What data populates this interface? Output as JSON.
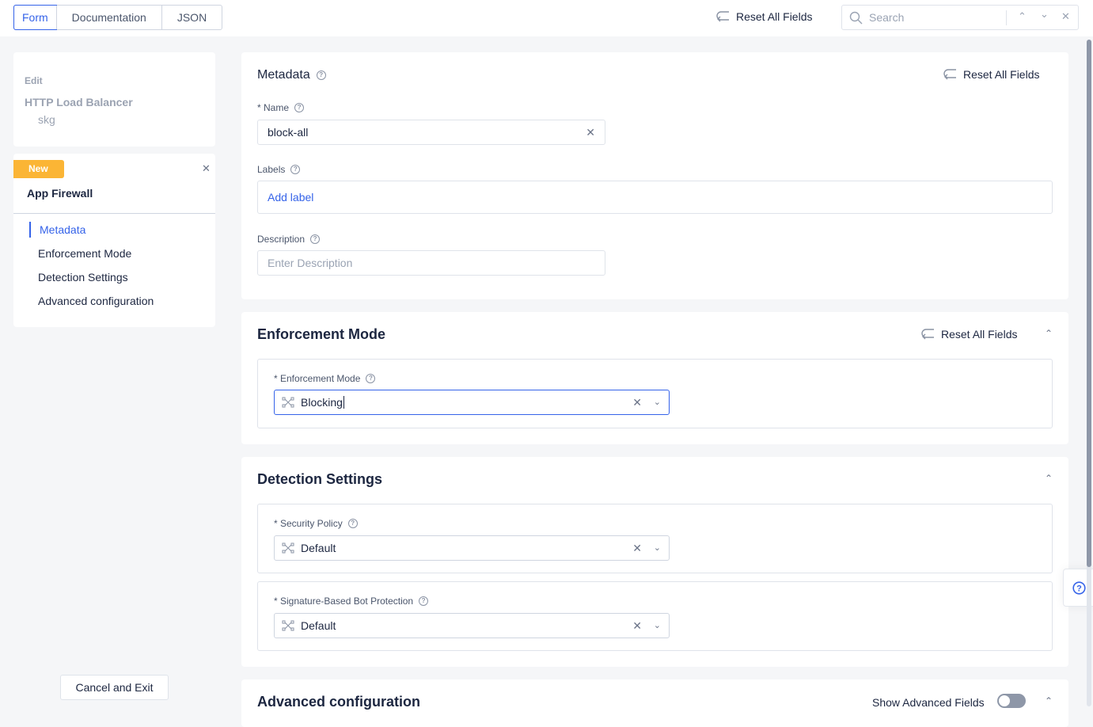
{
  "topbar": {
    "tabs": [
      "Form",
      "Documentation",
      "JSON"
    ],
    "reset": "Reset All Fields",
    "search_placeholder": "Search"
  },
  "sidebar": {
    "edit": "Edit",
    "parent": "HTTP Load Balancer",
    "parent_name": "skg",
    "badge": "New",
    "title": "App Firewall",
    "items": [
      "Metadata",
      "Enforcement Mode",
      "Detection Settings",
      "Advanced configuration"
    ],
    "cancel": "Cancel and Exit"
  },
  "metadata": {
    "title": "Metadata",
    "reset": "Reset All Fields",
    "name_label": "* Name",
    "name_value": "block-all",
    "labels_label": "Labels",
    "add_label": "Add label",
    "desc_label": "Description",
    "desc_placeholder": "Enter Description"
  },
  "enforcement": {
    "title": "Enforcement Mode",
    "reset": "Reset All Fields",
    "field_label": "* Enforcement Mode",
    "value": "Blocking"
  },
  "detection": {
    "title": "Detection Settings",
    "policy_label": "* Security Policy",
    "policy_value": "Default",
    "bot_label": "* Signature-Based Bot Protection",
    "bot_value": "Default"
  },
  "advanced": {
    "title": "Advanced configuration",
    "toggle_label": "Show Advanced Fields",
    "toggle_on": false
  },
  "colors": {
    "accent": "#3563e9",
    "badge": "#fbb535"
  }
}
